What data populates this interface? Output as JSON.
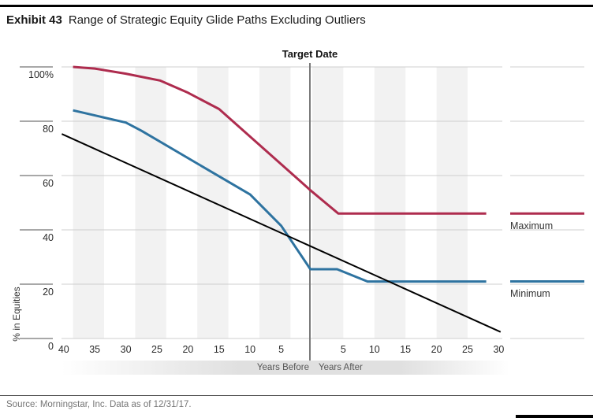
{
  "header": {
    "exhibit_label": "Exhibit 43",
    "title": "Range of Strategic Equity Glide Paths Excluding Outliers"
  },
  "footer": {
    "source": "Source: Morningstar, Inc. Data as of 12/31/17."
  },
  "chart_data": {
    "type": "line",
    "annotation": "Target Date",
    "ylabel": "% in Equities",
    "grid": "on",
    "legend_position": "right",
    "x_axis": {
      "unit": "years relative to target date",
      "range": [
        -40.5,
        30.7
      ],
      "tick_years": [
        -40,
        -35,
        -30,
        -25,
        -20,
        -15,
        -10,
        -5,
        5,
        10,
        15,
        20,
        25,
        30
      ],
      "tick_labels": [
        "40",
        "35",
        "30",
        "25",
        "20",
        "15",
        "10",
        "5",
        "5",
        "10",
        "15",
        "20",
        "25",
        "30"
      ],
      "before_label": "Years Before",
      "after_label": "Years After",
      "target_year": 0
    },
    "y_axis": {
      "range": [
        0,
        100
      ],
      "ticks": [
        0,
        20,
        40,
        60,
        80,
        100
      ],
      "tick_labels": [
        "0",
        "20",
        "40",
        "60",
        "80",
        "100%"
      ]
    },
    "series": [
      {
        "name": "Maximum",
        "color": "#AE2C4E",
        "width": 3,
        "end_value": 46,
        "points": [
          [
            -38.5,
            100
          ],
          [
            -35,
            99.4
          ],
          [
            -30,
            97.5
          ],
          [
            -24.5,
            95
          ],
          [
            -20,
            90.5
          ],
          [
            -15,
            84.5
          ],
          [
            0,
            54
          ],
          [
            4.2,
            46
          ],
          [
            28,
            46
          ]
        ]
      },
      {
        "name": "Minimum",
        "color": "#2E73A0",
        "width": 3,
        "end_value": 21,
        "points": [
          [
            -38.5,
            84
          ],
          [
            -30,
            79.5
          ],
          [
            -27.5,
            76.5
          ],
          [
            -10,
            53
          ],
          [
            -5,
            41.5
          ],
          [
            -0.3,
            25.5
          ],
          [
            4,
            25.5
          ],
          [
            8.9,
            21
          ],
          [
            28,
            21
          ]
        ]
      },
      {
        "name": "",
        "color": "#000000",
        "width": 2,
        "points": [
          [
            -40.3,
            75.3
          ],
          [
            30.3,
            2.4
          ]
        ]
      }
    ],
    "stripes": {
      "start_years": [
        -38.5,
        -28.5,
        -18.5,
        -8.5,
        0,
        10,
        20
      ],
      "width_years": 5,
      "color": "#f2f2f2"
    },
    "colors": {
      "gridline": "#cfcfcf",
      "tick": "#8c8c8c",
      "target_line": "#7a7a7a"
    }
  }
}
